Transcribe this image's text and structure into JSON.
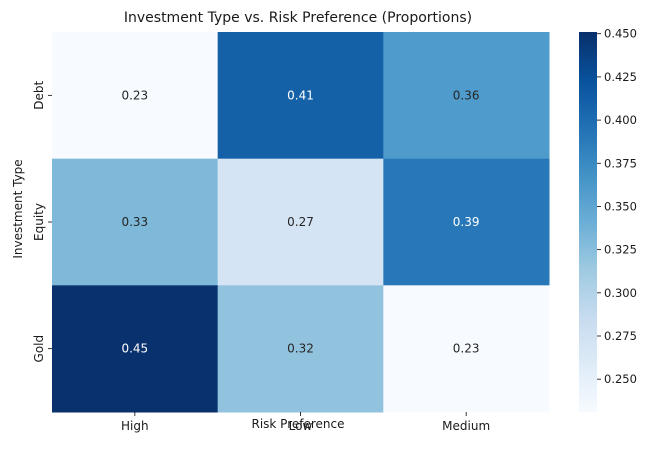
{
  "chart_data": {
    "type": "heatmap",
    "title": "Investment Type vs. Risk Preference (Proportions)",
    "xlabel": "Risk Preference",
    "ylabel": "Investment Type",
    "x_categories": [
      "High",
      "Low",
      "Medium"
    ],
    "y_categories": [
      "Debt",
      "Equity",
      "Gold"
    ],
    "values": [
      [
        0.23,
        0.41,
        0.36
      ],
      [
        0.33,
        0.27,
        0.39
      ],
      [
        0.45,
        0.32,
        0.23
      ]
    ],
    "cell_labels": [
      [
        "0.23",
        "0.41",
        "0.36"
      ],
      [
        "0.33",
        "0.27",
        "0.39"
      ],
      [
        "0.45",
        "0.32",
        "0.23"
      ]
    ],
    "colormap": "Blues",
    "colorbar": {
      "range": [
        0.231,
        0.451
      ],
      "ticks": [
        0.25,
        0.275,
        0.3,
        0.325,
        0.35,
        0.375,
        0.4,
        0.425,
        0.45
      ],
      "tick_labels": [
        "0.250",
        "0.275",
        "0.300",
        "0.325",
        "0.350",
        "0.375",
        "0.400",
        "0.425",
        "0.450"
      ]
    }
  }
}
